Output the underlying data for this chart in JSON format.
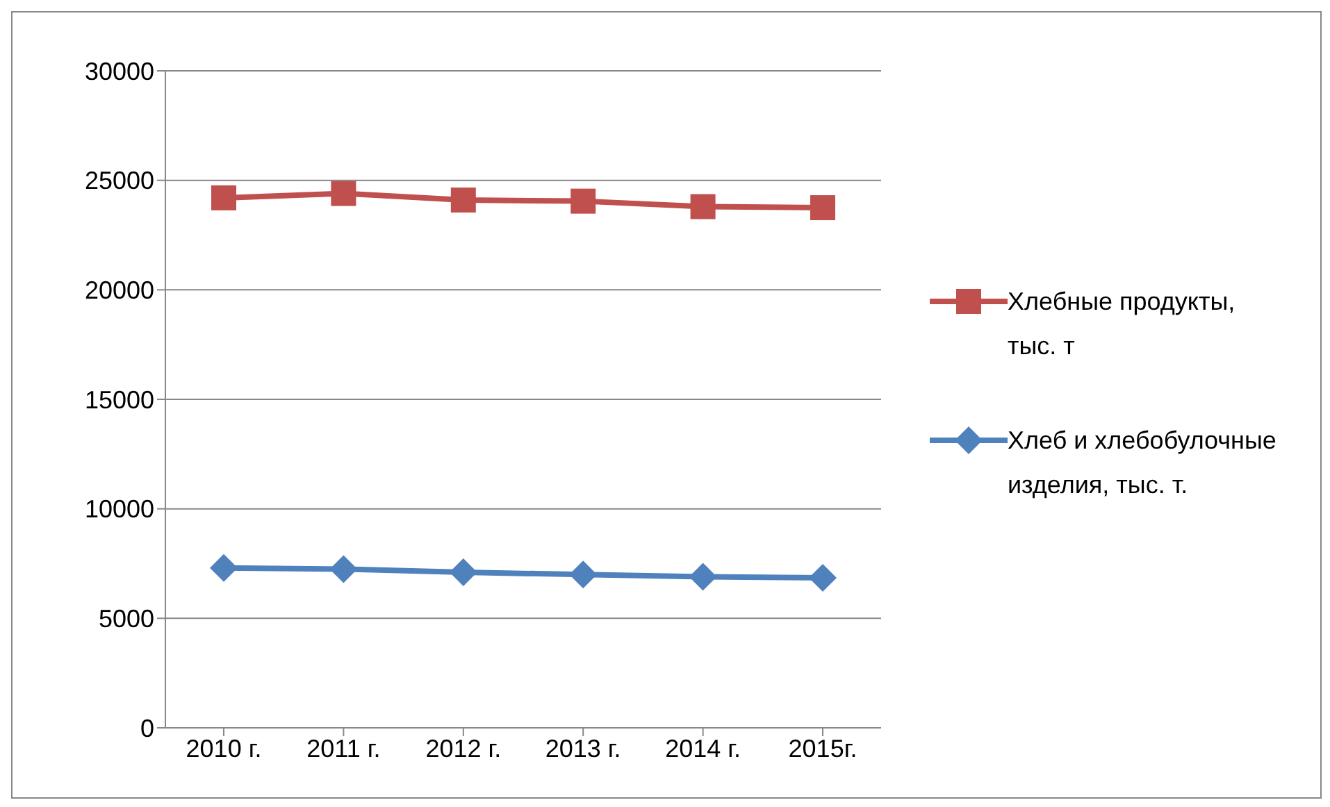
{
  "chart_data": {
    "type": "line",
    "categories": [
      "2010 г.",
      "2011 г.",
      "2012 г.",
      "2013 г.",
      "2014 г.",
      "2015г."
    ],
    "series": [
      {
        "name": "Хлебные продукты, тыс. т",
        "color": "#c0504d",
        "marker": "square",
        "values": [
          24200,
          24400,
          24100,
          24050,
          23800,
          23750
        ]
      },
      {
        "name": "Хлеб и хлебобулочные изделия, тыс. т.",
        "color": "#4f81bd",
        "marker": "diamond",
        "values": [
          7300,
          7250,
          7100,
          7000,
          6900,
          6850
        ]
      }
    ],
    "ylim": [
      0,
      30000
    ],
    "yticks": [
      0,
      5000,
      10000,
      15000,
      20000,
      25000,
      30000
    ],
    "grid": "y",
    "legend": "right"
  }
}
